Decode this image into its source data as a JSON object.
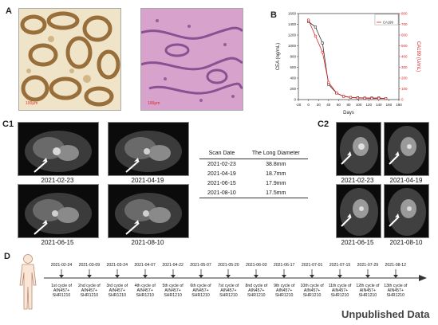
{
  "labels": {
    "A": "A",
    "B": "B",
    "C1": "C1",
    "C2": "C2",
    "D": "D"
  },
  "panelA": {
    "scale_left": "100μm",
    "scale_right": "100μm"
  },
  "chart_data": {
    "type": "line",
    "xlabel": "Days",
    "ylabel_left": "CEA (ng/mL)",
    "ylabel_right": "CA199 (U/mL)",
    "xlim": [
      -20,
      180
    ],
    "xticks": [
      -20,
      0,
      20,
      40,
      60,
      80,
      100,
      120,
      140,
      160,
      180
    ],
    "ylim_left": [
      0,
      1600
    ],
    "yticks_left": [
      0,
      200,
      400,
      600,
      800,
      1000,
      1200,
      1400,
      1600
    ],
    "ylim_right": [
      0,
      800
    ],
    "yticks_right": [
      0,
      100,
      200,
      300,
      400,
      500,
      600,
      700,
      800
    ],
    "legend_position": "top-right",
    "series": [
      {
        "name": "CEA",
        "color": "#333333",
        "axis": "left",
        "x": [
          0,
          14,
          28,
          40,
          56,
          70,
          84,
          98,
          112,
          126,
          140,
          154
        ],
        "y": [
          1450,
          1350,
          1050,
          280,
          120,
          60,
          40,
          35,
          30,
          30,
          30,
          20
        ]
      },
      {
        "name": "CA199",
        "color": "#dd2222",
        "axis": "right",
        "x": [
          0,
          14,
          28,
          40,
          56,
          70,
          84,
          98,
          112,
          126,
          140,
          154
        ],
        "y": [
          740,
          590,
          440,
          160,
          60,
          30,
          20,
          15,
          12,
          10,
          10,
          10
        ]
      }
    ]
  },
  "c1": {
    "dates": [
      "2021-02-23",
      "2021-04-19",
      "2021-06-15",
      "2021-08-10"
    ]
  },
  "table": {
    "headers": [
      "Scan Date",
      "The Long Diameter"
    ],
    "rows": [
      [
        "2021-02-23",
        "38.8mm"
      ],
      [
        "2021-04-19",
        "18.7mm"
      ],
      [
        "2021-06-15",
        "17.9mm"
      ],
      [
        "2021-08-10",
        "17.5mm"
      ]
    ]
  },
  "c2": {
    "dates": [
      "2021-02-23",
      "2021-04-19",
      "2021-06-15",
      "2021-08-10"
    ]
  },
  "timeline": {
    "dates": [
      "2021-02-24",
      "2021-03-09",
      "2021-03-24",
      "2021-04-07",
      "2021-04-22",
      "2021-05-07",
      "2021-05-20",
      "2021-06-03",
      "2021-06-17",
      "2021-07-01",
      "2021-07-15",
      "2021-07-29",
      "2021-08-12"
    ],
    "cycles": [
      [
        "1st cycle of",
        "AIN457+",
        "SHR1210"
      ],
      [
        "2nd cycle of",
        "AIN457+",
        "SHR1210"
      ],
      [
        "3rd cycle of",
        "AIN457+",
        "SHR1210"
      ],
      [
        "4th cycle of",
        "AIN457+",
        "SHR1210"
      ],
      [
        "5th cycle of",
        "AIN457+",
        "SHR1210"
      ],
      [
        "6th cycle of",
        "AIN457+",
        "SHR1210"
      ],
      [
        "7st cycle of",
        "AIN457+",
        "SHR1210"
      ],
      [
        "8nd cycle of",
        "AIN457+",
        "SHR1210"
      ],
      [
        "9th cycle of",
        "AIN457+",
        "SHR1210"
      ],
      [
        "10th cycle of",
        "AIN457+",
        "SHR1210"
      ],
      [
        "11th cycle of",
        "AIN457+",
        "SHR1210"
      ],
      [
        "12th cycle of",
        "AIN457+",
        "SHR1210"
      ],
      [
        "13th cycle of",
        "AIN457+",
        "SHR1210"
      ]
    ]
  },
  "watermark": "Unpublished Data"
}
